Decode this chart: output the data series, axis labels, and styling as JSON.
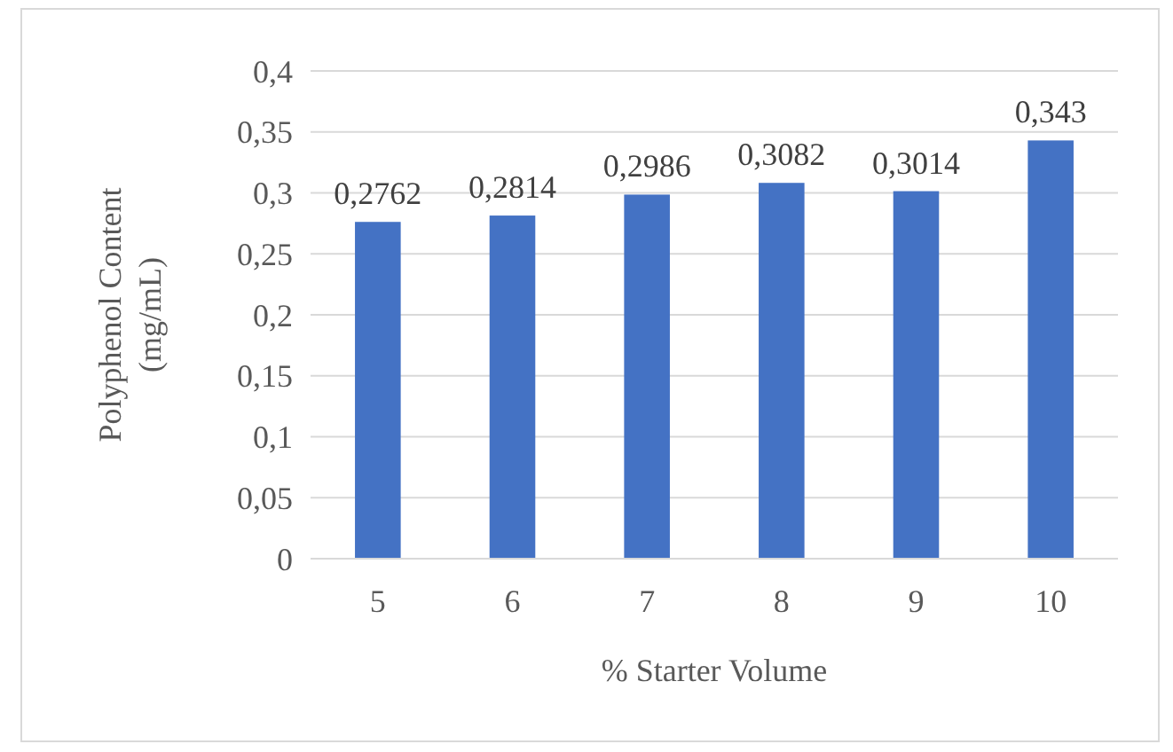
{
  "chart_data": {
    "type": "bar",
    "xlabel": "% Starter Volume",
    "ylabel": "Polyphenol Content (mg/mL)",
    "categories": [
      "5",
      "6",
      "7",
      "8",
      "9",
      "10"
    ],
    "values": [
      0.2762,
      0.2814,
      0.2986,
      0.3082,
      0.3014,
      0.343
    ],
    "value_labels": [
      "0,2762",
      "0,2814",
      "0,2986",
      "0,3082",
      "0,3014",
      "0,343"
    ],
    "color": "#4472c4",
    "ylim": [
      0,
      0.4
    ],
    "yticks": [
      {
        "value": 0,
        "label": "0"
      },
      {
        "value": 0.05,
        "label": "0,05"
      },
      {
        "value": 0.1,
        "label": "0,1"
      },
      {
        "value": 0.15,
        "label": "0,15"
      },
      {
        "value": 0.2,
        "label": "0,2"
      },
      {
        "value": 0.25,
        "label": "0,25"
      },
      {
        "value": 0.3,
        "label": "0,3"
      },
      {
        "value": 0.35,
        "label": "0,35"
      },
      {
        "value": 0.4,
        "label": "0,4"
      }
    ],
    "grid": "y"
  }
}
